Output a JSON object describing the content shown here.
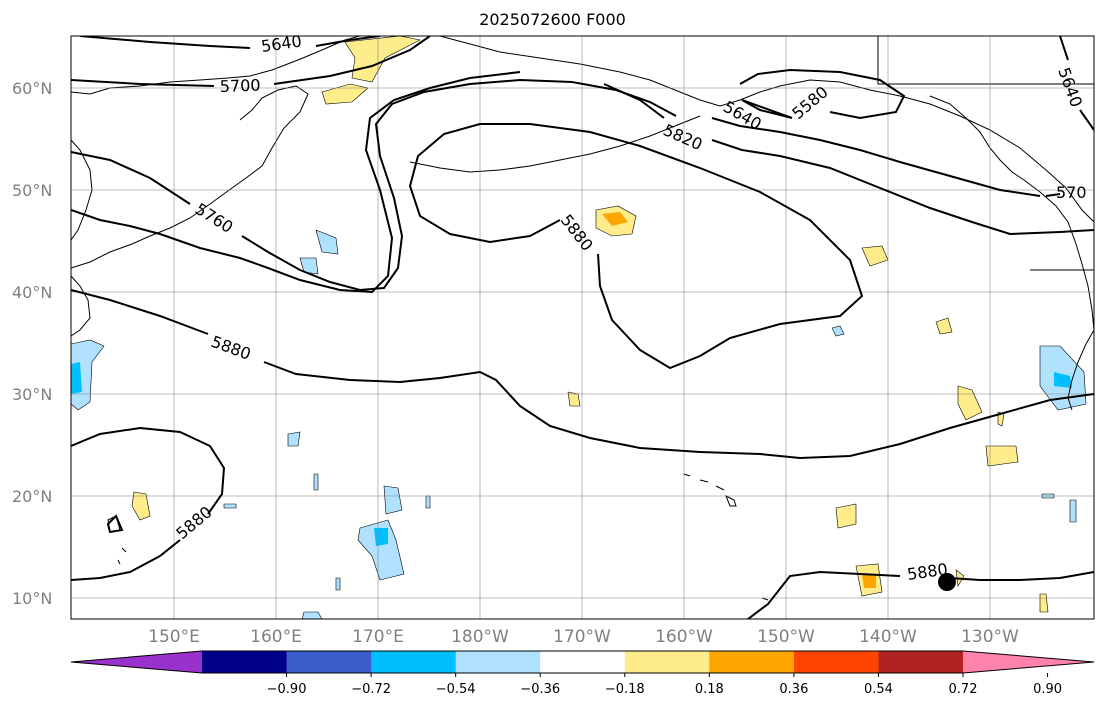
{
  "title": "2025072600 F000",
  "map": {
    "lat_labels": [
      "10°N",
      "20°N",
      "30°N",
      "40°N",
      "50°N",
      "60°N"
    ],
    "lon_labels": [
      "150°E",
      "160°E",
      "170°E",
      "180°W",
      "170°W",
      "160°W",
      "150°W",
      "140°W",
      "130°W"
    ],
    "contour_labels": [
      "5640",
      "5700",
      "5760",
      "5820",
      "5640",
      "5580",
      "5880",
      "5880",
      "5880",
      "5880",
      "5640",
      "570"
    ],
    "grid": true,
    "land_color": "#ffffff",
    "marker": "storm-position"
  },
  "colorbar": {
    "colors": [
      "#9932cc",
      "#00008b",
      "#3a5fcd",
      "#00bfff",
      "#b0e2ff",
      "#ffffff",
      "#ffec8b",
      "#ffa500",
      "#ff4500",
      "#b22222",
      "#ff82ab"
    ],
    "tick_labels": [
      "−0.90",
      "−0.72",
      "−0.54",
      "−0.36",
      "−0.18",
      "0.18",
      "0.36",
      "0.54",
      "0.72",
      "0.90"
    ]
  }
}
